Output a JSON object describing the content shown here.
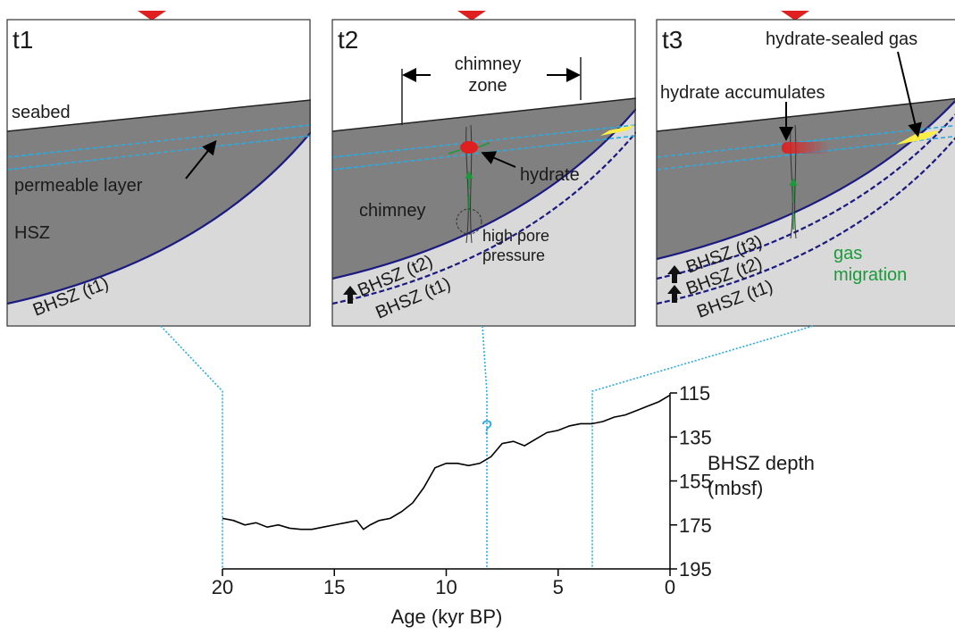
{
  "panels": [
    {
      "label": "t1",
      "seabed": "seabed",
      "layer": "permeable layer",
      "zone": "HSZ",
      "bhsz": [
        "BHSZ (t1)"
      ]
    },
    {
      "label": "t2",
      "chimney_zone": [
        "chimney",
        "zone"
      ],
      "hydrate": "hydrate",
      "chimney": "chimney",
      "pressure": [
        "high pore",
        "pressure"
      ],
      "bhsz": [
        "BHSZ (t2)",
        "BHSZ (t1)"
      ]
    },
    {
      "label": "t3",
      "sealed": "hydrate-sealed gas",
      "accumulates": "hydrate accumulates",
      "migration": [
        "gas",
        "migration"
      ],
      "bhsz": [
        "BHSZ (t3)",
        "BHSZ (t2)",
        "BHSZ (t1)"
      ]
    }
  ],
  "chart_data": {
    "type": "line",
    "x_label": "Age (kyr BP)",
    "y_label": [
      "BHSZ depth",
      "(mbsf)"
    ],
    "annotation": "?",
    "x": [
      20,
      19.5,
      19,
      18.5,
      18,
      17.5,
      17,
      16.5,
      16,
      15.5,
      15,
      14.5,
      14,
      13.7,
      13.4,
      13,
      12.5,
      12,
      11.5,
      11,
      10.5,
      10,
      9.5,
      9,
      8.5,
      8,
      7.5,
      7,
      6.5,
      6,
      5.5,
      5,
      4.5,
      4,
      3.5,
      3,
      2.5,
      2,
      1.5,
      1,
      0.5,
      0
    ],
    "values": [
      172,
      173,
      175,
      174,
      176,
      175,
      176.5,
      177,
      177,
      176,
      175,
      174,
      173,
      177,
      175,
      173,
      172,
      169,
      165,
      158,
      149,
      147,
      147,
      148,
      147,
      144,
      138,
      137,
      139,
      136,
      133,
      132,
      130,
      129,
      129,
      128,
      126,
      125,
      123,
      121,
      119,
      116
    ],
    "color": "#000000",
    "xlim": [
      20,
      0
    ],
    "ylim": [
      195,
      115
    ],
    "xticks": [
      20,
      15,
      10,
      5,
      0
    ],
    "yticks": [
      115,
      135,
      155,
      175,
      195
    ]
  }
}
